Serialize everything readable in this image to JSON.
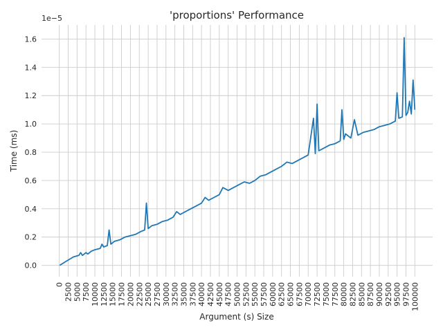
{
  "chart_data": {
    "type": "line",
    "title": "'proportions' Performance",
    "xlabel": "Argument (s) Size",
    "ylabel": "Time (ms)",
    "y_offset_label": "1e−5",
    "x_ticks": [
      0,
      2500,
      5000,
      7500,
      10000,
      12500,
      15000,
      17500,
      20000,
      22500,
      25000,
      27500,
      30000,
      32500,
      35000,
      37500,
      40000,
      42500,
      45000,
      47500,
      50000,
      52500,
      55000,
      57500,
      60000,
      62500,
      65000,
      67500,
      70000,
      72500,
      75000,
      77500,
      80000,
      82500,
      85000,
      87500,
      90000,
      92500,
      95000,
      97500,
      100000
    ],
    "y_ticks": [
      "0.0",
      "0.2",
      "0.4",
      "0.6",
      "0.8",
      "1.0",
      "1.2",
      "1.4",
      "1.6"
    ],
    "xlim": [
      -5000,
      105000
    ],
    "ylim": [
      -0.08,
      1.7
    ],
    "grid": true,
    "series": [
      {
        "color": "#1f77b4",
        "x": [
          100,
          2000,
          4000,
          5500,
          6000,
          6500,
          7500,
          8000,
          9000,
          10000,
          11500,
          12000,
          12500,
          13500,
          14000,
          14500,
          15500,
          17000,
          18500,
          20000,
          21500,
          23000,
          24000,
          24500,
          25000,
          26000,
          27500,
          29000,
          30500,
          32000,
          33000,
          34000,
          35500,
          37000,
          38500,
          40000,
          41000,
          42000,
          43500,
          45000,
          46000,
          47500,
          49000,
          50500,
          52000,
          53500,
          55000,
          56500,
          58000,
          59500,
          61000,
          62500,
          64000,
          65500,
          67000,
          68500,
          70000,
          71500,
          72000,
          72500,
          73000,
          74500,
          76000,
          77500,
          79000,
          79500,
          80000,
          80500,
          82000,
          83000,
          84000,
          85500,
          87000,
          88500,
          90000,
          91500,
          93000,
          94500,
          95000,
          95500,
          96500,
          97000,
          97500,
          98000,
          98500,
          99000,
          99500,
          100000
        ],
        "values": [
          0.0,
          0.03,
          0.06,
          0.07,
          0.09,
          0.07,
          0.09,
          0.08,
          0.1,
          0.11,
          0.12,
          0.15,
          0.13,
          0.14,
          0.25,
          0.15,
          0.17,
          0.18,
          0.2,
          0.21,
          0.22,
          0.24,
          0.25,
          0.44,
          0.26,
          0.28,
          0.29,
          0.31,
          0.32,
          0.34,
          0.38,
          0.36,
          0.38,
          0.4,
          0.42,
          0.44,
          0.48,
          0.46,
          0.48,
          0.5,
          0.55,
          0.53,
          0.55,
          0.57,
          0.59,
          0.58,
          0.6,
          0.63,
          0.64,
          0.66,
          0.68,
          0.7,
          0.73,
          0.72,
          0.74,
          0.76,
          0.78,
          1.04,
          0.79,
          1.14,
          0.81,
          0.83,
          0.85,
          0.86,
          0.88,
          1.1,
          0.89,
          0.93,
          0.9,
          1.03,
          0.92,
          0.94,
          0.95,
          0.96,
          0.98,
          0.99,
          1.0,
          1.02,
          1.22,
          1.04,
          1.05,
          1.61,
          1.06,
          1.08,
          1.16,
          1.07,
          1.31,
          1.1
        ]
      }
    ]
  }
}
